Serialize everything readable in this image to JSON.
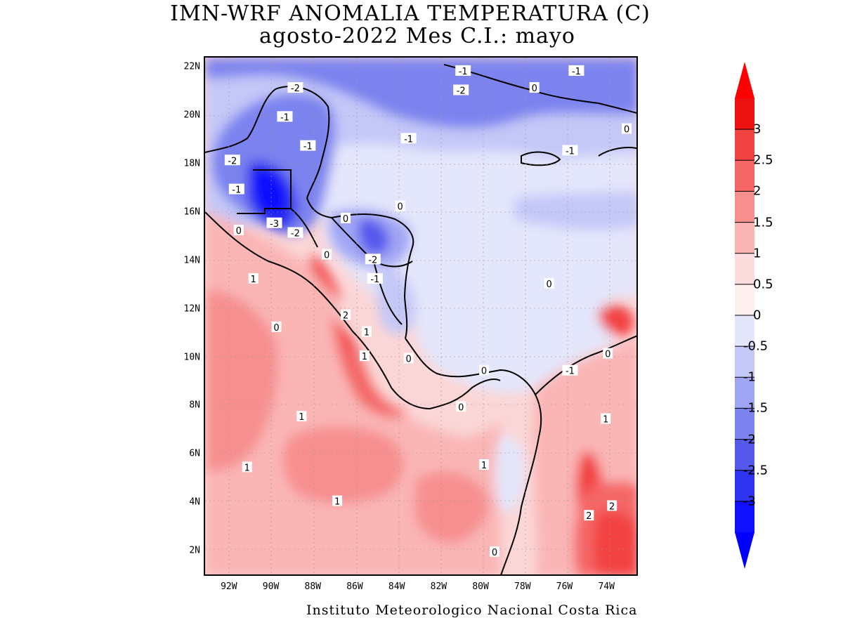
{
  "title": {
    "line1": "IMN-WRF  ANOMALIA TEMPERATURA (C)",
    "line2": "agosto-2022 Mes C.I.: mayo"
  },
  "map": {
    "lat_labels": [
      "22N",
      "20N",
      "18N",
      "16N",
      "14N",
      "12N",
      "10N",
      "8N",
      "6N",
      "4N",
      "2N"
    ],
    "lon_labels": [
      "92W",
      "90W",
      "88W",
      "86W",
      "84W",
      "82W",
      "80W",
      "78W",
      "76W",
      "74W"
    ],
    "contour_labels": [
      {
        "text": "-2",
        "lon": -88.9,
        "lat": 21.2
      },
      {
        "text": "-2",
        "lon": -81.0,
        "lat": 21.1
      },
      {
        "text": "-1",
        "lon": -80.9,
        "lat": 21.9
      },
      {
        "text": "-1",
        "lon": -75.5,
        "lat": 21.9
      },
      {
        "text": "0",
        "lon": -77.5,
        "lat": 21.2
      },
      {
        "text": "-1",
        "lon": -89.4,
        "lat": 20.0
      },
      {
        "text": "-1",
        "lon": -83.5,
        "lat": 19.1
      },
      {
        "text": "-1",
        "lon": -88.3,
        "lat": 18.8
      },
      {
        "text": "-1",
        "lon": -75.8,
        "lat": 18.6
      },
      {
        "text": "0",
        "lon": -73.1,
        "lat": 19.5
      },
      {
        "text": "-2",
        "lon": -91.9,
        "lat": 18.2
      },
      {
        "text": "-1",
        "lon": -91.7,
        "lat": 17.0
      },
      {
        "text": "0",
        "lon": -83.9,
        "lat": 16.3
      },
      {
        "text": "0",
        "lon": -86.5,
        "lat": 15.8
      },
      {
        "text": "-3",
        "lon": -89.9,
        "lat": 15.6
      },
      {
        "text": "0",
        "lon": -91.6,
        "lat": 15.3
      },
      {
        "text": "-2",
        "lon": -88.9,
        "lat": 15.2
      },
      {
        "text": "0",
        "lon": -87.4,
        "lat": 14.3
      },
      {
        "text": "-2",
        "lon": -85.2,
        "lat": 14.1
      },
      {
        "text": "-1",
        "lon": -85.1,
        "lat": 13.3
      },
      {
        "text": "1",
        "lon": -90.9,
        "lat": 13.3
      },
      {
        "text": "0",
        "lon": -76.8,
        "lat": 13.1
      },
      {
        "text": "2",
        "lon": -86.5,
        "lat": 11.8
      },
      {
        "text": "0",
        "lon": -89.8,
        "lat": 11.3
      },
      {
        "text": "1",
        "lon": -85.5,
        "lat": 11.1
      },
      {
        "text": "1",
        "lon": -85.6,
        "lat": 10.1
      },
      {
        "text": "0",
        "lon": -83.5,
        "lat": 10.0
      },
      {
        "text": "0",
        "lon": -74.0,
        "lat": 10.2
      },
      {
        "text": "0",
        "lon": -79.9,
        "lat": 9.5
      },
      {
        "text": "-1",
        "lon": -75.8,
        "lat": 9.5
      },
      {
        "text": "0",
        "lon": -81.0,
        "lat": 8.0
      },
      {
        "text": "1",
        "lon": -88.6,
        "lat": 7.6
      },
      {
        "text": "1",
        "lon": -74.1,
        "lat": 7.5
      },
      {
        "text": "1",
        "lon": -91.2,
        "lat": 5.5
      },
      {
        "text": "1",
        "lon": -79.9,
        "lat": 5.6
      },
      {
        "text": "1",
        "lon": -86.9,
        "lat": 4.1
      },
      {
        "text": "2",
        "lon": -74.9,
        "lat": 3.5
      },
      {
        "text": "2",
        "lon": -73.8,
        "lat": 3.9
      },
      {
        "text": "0",
        "lon": -79.4,
        "lat": 2.0
      }
    ]
  },
  "colorbar": {
    "labels": [
      "3",
      "2.5",
      "2",
      "1.5",
      "1",
      "0.5",
      "0",
      "-0.5",
      "-1",
      "-1.5",
      "-2",
      "-2.5",
      "-3"
    ],
    "colors": [
      "#ee1111",
      "#f24343",
      "#f56666",
      "#f78f8f",
      "#fab5b5",
      "#fcdcdc",
      "#fdf0ee",
      "#e4e6fb",
      "#c4c8f7",
      "#a1a6f4",
      "#7c83ef",
      "#5459ec",
      "#2d33ee",
      "#1010ff"
    ],
    "over_color": "#ff0000",
    "under_color": "#0000ff"
  },
  "credit": "Instituto Meteorologico Nacional Costa Rica"
}
